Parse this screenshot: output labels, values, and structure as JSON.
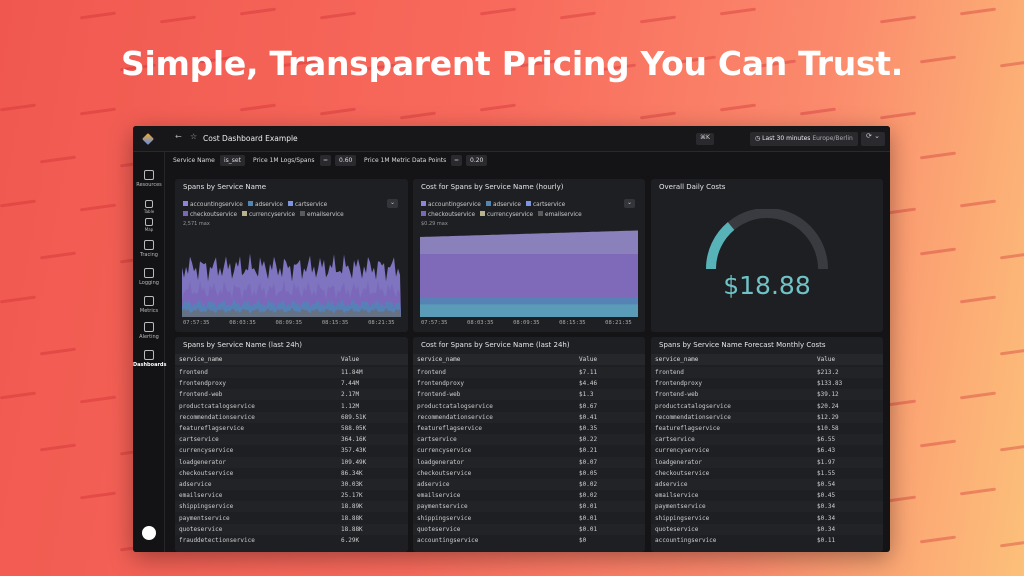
{
  "headline": "Simple, Transparent Pricing You Can Trust.",
  "dashboard": {
    "title": "Cost Dashboard Example",
    "shortcut": "⌘K",
    "time_range": "Last 30 minutes",
    "timezone": "Europe/Berlin",
    "sidebar": [
      "Resources",
      "Table",
      "Map",
      "Tracing",
      "Logging",
      "Metrics",
      "Alerting",
      "Dashboards"
    ],
    "filters": [
      {
        "label": "Service Name",
        "value": "is_set"
      },
      {
        "label": "Price 1M Logs/Spans",
        "op": "=",
        "value": "0.60"
      },
      {
        "label": "Price 1M Metric Data Points",
        "op": "=",
        "value": "0.20"
      }
    ],
    "legend": [
      {
        "name": "accountingservice",
        "color": "#8f84dc"
      },
      {
        "name": "adservice",
        "color": "#4f86b5"
      },
      {
        "name": "cartservice",
        "color": "#7b95e0"
      },
      {
        "name": "checkoutservice",
        "color": "#7b66b8"
      },
      {
        "name": "currencyservice",
        "color": "#b9b28c"
      },
      {
        "name": "emailservice",
        "color": "#5a5a5a"
      }
    ],
    "panels": [
      {
        "title": "Spans by Service Name",
        "max": "2,571 max",
        "xticks": [
          "07:57:35",
          "08:03:35",
          "08:09:35",
          "08:15:35",
          "08:21:35"
        ]
      },
      {
        "title": "Cost for Spans by Service Name (hourly)",
        "max": "$0.29 max",
        "xticks": [
          "07:57:35",
          "08:03:35",
          "08:09:35",
          "08:15:35",
          "08:21:35"
        ]
      },
      {
        "title": "Overall Daily Costs",
        "value": "$18.88"
      }
    ],
    "tables": [
      {
        "title": "Spans by Service Name (last 24h)",
        "columns": [
          "service_name",
          "Value"
        ],
        "rows": [
          [
            "frontend",
            "11.84M"
          ],
          [
            "frontendproxy",
            "7.44M"
          ],
          [
            "frontend-web",
            "2.17M"
          ],
          [
            "productcatalogservice",
            "1.12M"
          ],
          [
            "recommendationservice",
            "689.51K"
          ],
          [
            "featureflagservice",
            "588.05K"
          ],
          [
            "cartservice",
            "364.16K"
          ],
          [
            "currencyservice",
            "357.43K"
          ],
          [
            "loadgenerator",
            "109.49K"
          ],
          [
            "checkoutservice",
            "86.34K"
          ],
          [
            "adservice",
            "30.03K"
          ],
          [
            "emailservice",
            "25.17K"
          ],
          [
            "shippingservice",
            "18.89K"
          ],
          [
            "paymentservice",
            "18.88K"
          ],
          [
            "quoteservice",
            "18.88K"
          ],
          [
            "frauddetectionservice",
            "6.29K"
          ]
        ]
      },
      {
        "title": "Cost for Spans by Service Name (last 24h)",
        "columns": [
          "service_name",
          "Value"
        ],
        "rows": [
          [
            "frontend",
            "$7.11"
          ],
          [
            "frontendproxy",
            "$4.46"
          ],
          [
            "frontend-web",
            "$1.3"
          ],
          [
            "productcatalogservice",
            "$0.67"
          ],
          [
            "recommendationservice",
            "$0.41"
          ],
          [
            "featureflagservice",
            "$0.35"
          ],
          [
            "cartservice",
            "$0.22"
          ],
          [
            "currencyservice",
            "$0.21"
          ],
          [
            "loadgenerator",
            "$0.07"
          ],
          [
            "checkoutservice",
            "$0.05"
          ],
          [
            "adservice",
            "$0.02"
          ],
          [
            "emailservice",
            "$0.02"
          ],
          [
            "paymentservice",
            "$0.01"
          ],
          [
            "shippingservice",
            "$0.01"
          ],
          [
            "quoteservice",
            "$0.01"
          ],
          [
            "accountingservice",
            "$0"
          ]
        ]
      },
      {
        "title": "Spans by Service Name Forecast Monthly Costs",
        "columns": [
          "service_name",
          "Value"
        ],
        "rows": [
          [
            "frontend",
            "$213.2"
          ],
          [
            "frontendproxy",
            "$133.83"
          ],
          [
            "frontend-web",
            "$39.12"
          ],
          [
            "productcatalogservice",
            "$20.24"
          ],
          [
            "recommendationservice",
            "$12.29"
          ],
          [
            "featureflagservice",
            "$10.58"
          ],
          [
            "cartservice",
            "$6.55"
          ],
          [
            "currencyservice",
            "$6.43"
          ],
          [
            "loadgenerator",
            "$1.97"
          ],
          [
            "checkoutservice",
            "$1.55"
          ],
          [
            "adservice",
            "$0.54"
          ],
          [
            "emailservice",
            "$0.45"
          ],
          [
            "paymentservice",
            "$0.34"
          ],
          [
            "shippingservice",
            "$0.34"
          ],
          [
            "quoteservice",
            "$0.34"
          ],
          [
            "accountingservice",
            "$0.11"
          ]
        ]
      }
    ]
  }
}
